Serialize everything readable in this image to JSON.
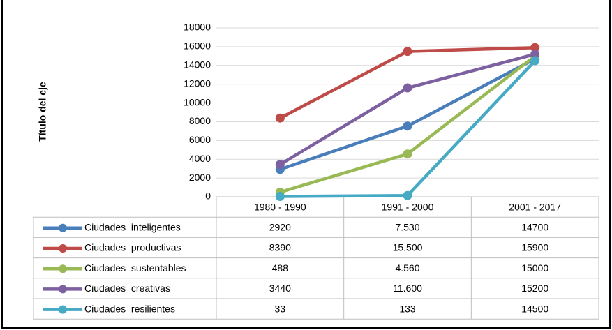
{
  "chart_data": {
    "type": "line",
    "y_axis_label": "Título del eje",
    "categories": [
      "1980 - 1990",
      "1991 - 2000",
      "2001 - 2017"
    ],
    "series": [
      {
        "name": "Ciudades  inteligentes",
        "color": "#4a7ebb",
        "values": [
          2920,
          7530,
          14700
        ],
        "value_labels": [
          "2920",
          "7.530",
          "14700"
        ]
      },
      {
        "name": "Ciudades  productivas",
        "color": "#be4b48",
        "values": [
          8390,
          15500,
          15900
        ],
        "value_labels": [
          "8390",
          "15.500",
          "15900"
        ]
      },
      {
        "name": "Ciudades  sustentables",
        "color": "#98b954",
        "values": [
          488,
          4560,
          15000
        ],
        "value_labels": [
          "488",
          "4.560",
          "15000"
        ]
      },
      {
        "name": "Ciudades  creativas",
        "color": "#7d60a0",
        "values": [
          3440,
          11600,
          15200
        ],
        "value_labels": [
          "3440",
          "11.600",
          "15200"
        ]
      },
      {
        "name": "Ciudades  resilientes",
        "color": "#46aac5",
        "values": [
          33,
          133,
          14500
        ],
        "value_labels": [
          "33",
          "133",
          "14500"
        ]
      }
    ],
    "ylim": [
      0,
      18000
    ],
    "yticks": [
      0,
      2000,
      4000,
      6000,
      8000,
      10000,
      12000,
      14000,
      16000,
      18000
    ],
    "grid": true
  }
}
